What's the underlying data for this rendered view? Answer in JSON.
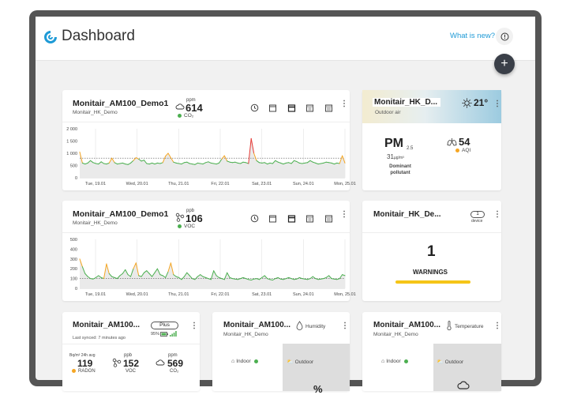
{
  "header": {
    "title": "Dashboard",
    "whats_new": "What is new?"
  },
  "colors": {
    "green": "#4caf50",
    "orange": "#f5a623",
    "red": "#e53935",
    "accent": "#1e9ad6",
    "yellow": "#f5c518"
  },
  "card_co2": {
    "title": "Monitair_AM100_Demo1",
    "subtitle": "Monitair_HK_Demo",
    "unit": "ppm",
    "value": "614",
    "param": "CO₂",
    "icons": [
      "clock-icon",
      "calendar-day-icon",
      "calendar-week-icon",
      "calendar-month-icon",
      "calendar-year-icon"
    ]
  },
  "card_voc": {
    "title": "Monitair_AM100_Demo1",
    "subtitle": "Monitair_HK_Demo",
    "unit": "ppb",
    "value": "106",
    "param": "VOC"
  },
  "card_outdoor": {
    "title": "Monitair_HK_D...",
    "subtitle": "Outdoor air",
    "temp": "21°",
    "pm": "PM",
    "pm_sub": "2.5",
    "pm_value": "31",
    "pm_unit": "µg/m³",
    "dominant": "Dominant pollutant",
    "aqi_value": "54",
    "aqi_label": "AQI"
  },
  "card_warn": {
    "title": "Monitair_HK_De...",
    "device_count": "1",
    "device_label": "device",
    "warn_count": "1",
    "warn_label": "WARNINGS"
  },
  "card_plus": {
    "title": "Monitair_AM100...",
    "badge": "Plus",
    "battery": "95%",
    "synced": "Last synced: 7 minutes ago",
    "radon_unit": "Bq/m³ 24h avg",
    "radon_value": "119",
    "radon_label": "RADON",
    "voc_unit": "ppb",
    "voc_value": "152",
    "voc_label": "VOC",
    "co2_unit": "ppm",
    "co2_value": "569",
    "co2_label": "CO₂"
  },
  "card_hum": {
    "title": "Monitair_AM100...",
    "subtitle": "Monitair_HK_Demo",
    "param": "Humidity",
    "indoor": "Indoor",
    "outdoor": "Outdoor",
    "outdoor_val": "%"
  },
  "card_temp": {
    "title": "Monitair_AM100...",
    "subtitle": "Monitair_HK_Demo",
    "param": "Temperature",
    "indoor": "Indoor",
    "outdoor": "Outdoor"
  },
  "chart_data": [
    {
      "type": "line",
      "title": "",
      "x_ticks": [
        "Tue, 19.01",
        "Wed, 20.01",
        "Thu, 21.01",
        "Fri, 22.01",
        "Sat, 23.01",
        "Sun, 24.01",
        "Mon, 25.01"
      ],
      "y_ticks": [
        "2 000",
        "1 500",
        "1 000",
        "500",
        "0"
      ],
      "ylim": [
        0,
        2000
      ],
      "threshold": 800,
      "values": [
        1050,
        600,
        560,
        600,
        700,
        620,
        580,
        560,
        650,
        580,
        560,
        600,
        800,
        620,
        560,
        580,
        600,
        560,
        540,
        600,
        700,
        820,
        760,
        680,
        720,
        580,
        560,
        600,
        560,
        600,
        580,
        620,
        880,
        1000,
        820,
        640,
        600,
        580,
        560,
        620,
        640,
        580,
        560,
        540,
        600,
        580,
        560,
        620,
        650,
        600,
        580,
        560,
        600,
        760,
        900,
        680,
        640,
        620,
        640,
        600,
        580,
        640,
        620,
        580,
        1600,
        1000,
        700,
        620,
        600,
        620,
        560,
        600,
        580,
        700,
        640,
        600,
        560,
        600,
        620,
        580,
        700,
        660,
        600,
        580,
        600,
        620,
        700,
        640,
        600,
        560,
        580,
        600,
        640,
        620,
        600,
        560,
        600,
        580,
        900,
        600
      ]
    },
    {
      "type": "line",
      "title": "",
      "x_ticks": [
        "Tue, 19.01",
        "Wed, 20.01",
        "Thu, 21.01",
        "Fri, 22.01",
        "Sat, 23.01",
        "Sun, 24.01",
        "Mon, 25.01"
      ],
      "y_ticks": [
        "500",
        "400",
        "300",
        "200",
        "100",
        "0"
      ],
      "ylim": [
        0,
        500
      ],
      "threshold": 100,
      "values": [
        300,
        220,
        150,
        120,
        100,
        95,
        110,
        130,
        110,
        100,
        250,
        150,
        120,
        110,
        100,
        130,
        150,
        190,
        140,
        120,
        200,
        260,
        130,
        120,
        160,
        180,
        150,
        120,
        160,
        200,
        140,
        130,
        110,
        170,
        260,
        140,
        120,
        110,
        90,
        120,
        160,
        130,
        100,
        90,
        120,
        140,
        120,
        110,
        100,
        90,
        180,
        130,
        110,
        100,
        90,
        160,
        110,
        100,
        95,
        90,
        100,
        110,
        100,
        90,
        85,
        95,
        100,
        90,
        110,
        130,
        100,
        90,
        85,
        100,
        110,
        95,
        90,
        100,
        110,
        100,
        90,
        95,
        110,
        100,
        95,
        90,
        100,
        120,
        100,
        90,
        95,
        100,
        110,
        130,
        100,
        95,
        90,
        100,
        140,
        130
      ]
    }
  ]
}
